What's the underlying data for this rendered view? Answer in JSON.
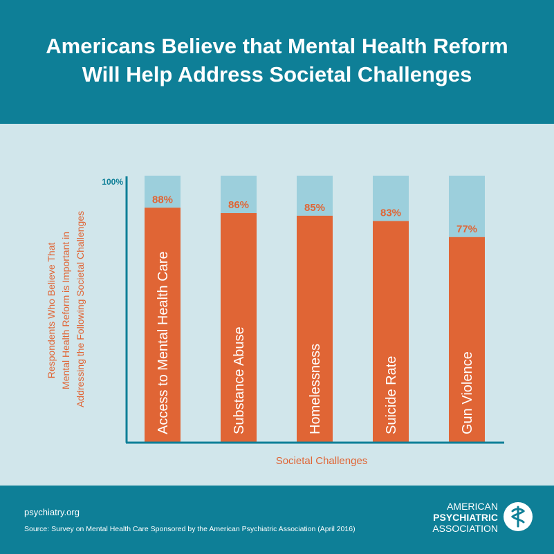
{
  "header": {
    "title_line1": "Americans Believe that Mental Health Reform",
    "title_line2": "Will Help Address Societal Challenges"
  },
  "colors": {
    "header_bg": "#0e7f97",
    "chart_bg": "#d1e6eb",
    "bar_fill": "#e06535",
    "bar_remainder": "#9ccfdc",
    "axis": "#0e7f97",
    "label": "#e06535"
  },
  "chart_data": {
    "type": "bar",
    "categories": [
      "Access to Mental Health Care",
      "Substance Abuse",
      "Homelessness",
      "Suicide Rate",
      "Gun Violence"
    ],
    "values": [
      88,
      86,
      85,
      83,
      77
    ],
    "value_labels": [
      "88%",
      "86%",
      "85%",
      "83%",
      "77%"
    ],
    "ylim": [
      0,
      100
    ],
    "ytick_label": "100%",
    "ylabel_lines": [
      "Respondents Who Believe That",
      "Mental Health Reform is Important in",
      "Addressing the Following Societal Challenges"
    ],
    "xlabel": "Societal Challenges",
    "category_label_orientation": "vertical",
    "grid": false,
    "legend": "none"
  },
  "footer": {
    "site": "psychiatry.org",
    "source": "Source: Survey on Mental Health Care Sponsored by the American Psychiatric Association (April 2016)",
    "logo_line1": "AMERICAN",
    "logo_line2": "PSYCHIATRIC",
    "logo_line3": "ASSOCIATION",
    "logo_icon": "apa-seal-icon"
  }
}
